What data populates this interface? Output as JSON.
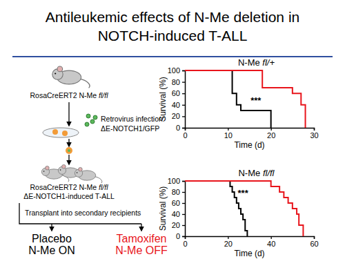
{
  "title": [
    "Antileukemic effects of N-Me deletion in",
    "NOTCH-induced T-ALL"
  ],
  "diagram": {
    "mouse_label": "RosaCreERT2 N-Me fl/fl",
    "infection": [
      "Retrovirus infection:",
      "ΔE-NOTCH1/GFP"
    ],
    "leukemia_label": [
      "RosaCreERT2 N-Me fl/fl",
      "ΔE-NOTCH1-induced T-ALL"
    ],
    "transplant": "Transplant into secondary recipients",
    "arms": [
      {
        "lines": [
          "Placebo",
          "N-Me ON"
        ],
        "color": "#000000"
      },
      {
        "lines": [
          "Tamoxifen",
          "N-Me OFF"
        ],
        "color": "#e8141b"
      }
    ]
  },
  "chart_data": [
    {
      "type": "step",
      "title": "N-Me fl/+",
      "x_label": "Time (d)",
      "y_label": "Survival (%)",
      "xlim": [
        0,
        30
      ],
      "xticks": [
        0,
        10,
        20,
        30
      ],
      "ylim": [
        0,
        100
      ],
      "yticks": [
        0,
        20,
        40,
        60,
        80,
        100
      ],
      "annotation": "***",
      "series": [
        {
          "color": "#000000",
          "x": [
            0,
            11,
            12,
            13,
            20
          ],
          "values": [
            100,
            60,
            40,
            30,
            0
          ]
        },
        {
          "color": "#e8141b",
          "x": [
            0,
            18,
            25,
            27,
            28
          ],
          "values": [
            100,
            70,
            60,
            40,
            0
          ]
        }
      ]
    },
    {
      "type": "step",
      "title": "N-Me fl/fl",
      "x_label": "Time (d)",
      "y_label": "Survival (%)",
      "xlim": [
        0,
        60
      ],
      "xticks": [
        0,
        20,
        40,
        60
      ],
      "ylim": [
        0,
        100
      ],
      "yticks": [
        0,
        20,
        40,
        60,
        80,
        100
      ],
      "annotation": "***",
      "series": [
        {
          "color": "#000000",
          "x": [
            0,
            21,
            22,
            23,
            24,
            25,
            26,
            27,
            28,
            29
          ],
          "values": [
            100,
            90,
            80,
            70,
            60,
            50,
            40,
            30,
            10,
            0
          ]
        },
        {
          "color": "#e8141b",
          "x": [
            0,
            40,
            44,
            46,
            48,
            50,
            52,
            53,
            55
          ],
          "values": [
            100,
            90,
            80,
            70,
            60,
            50,
            40,
            20,
            0
          ]
        }
      ]
    }
  ]
}
